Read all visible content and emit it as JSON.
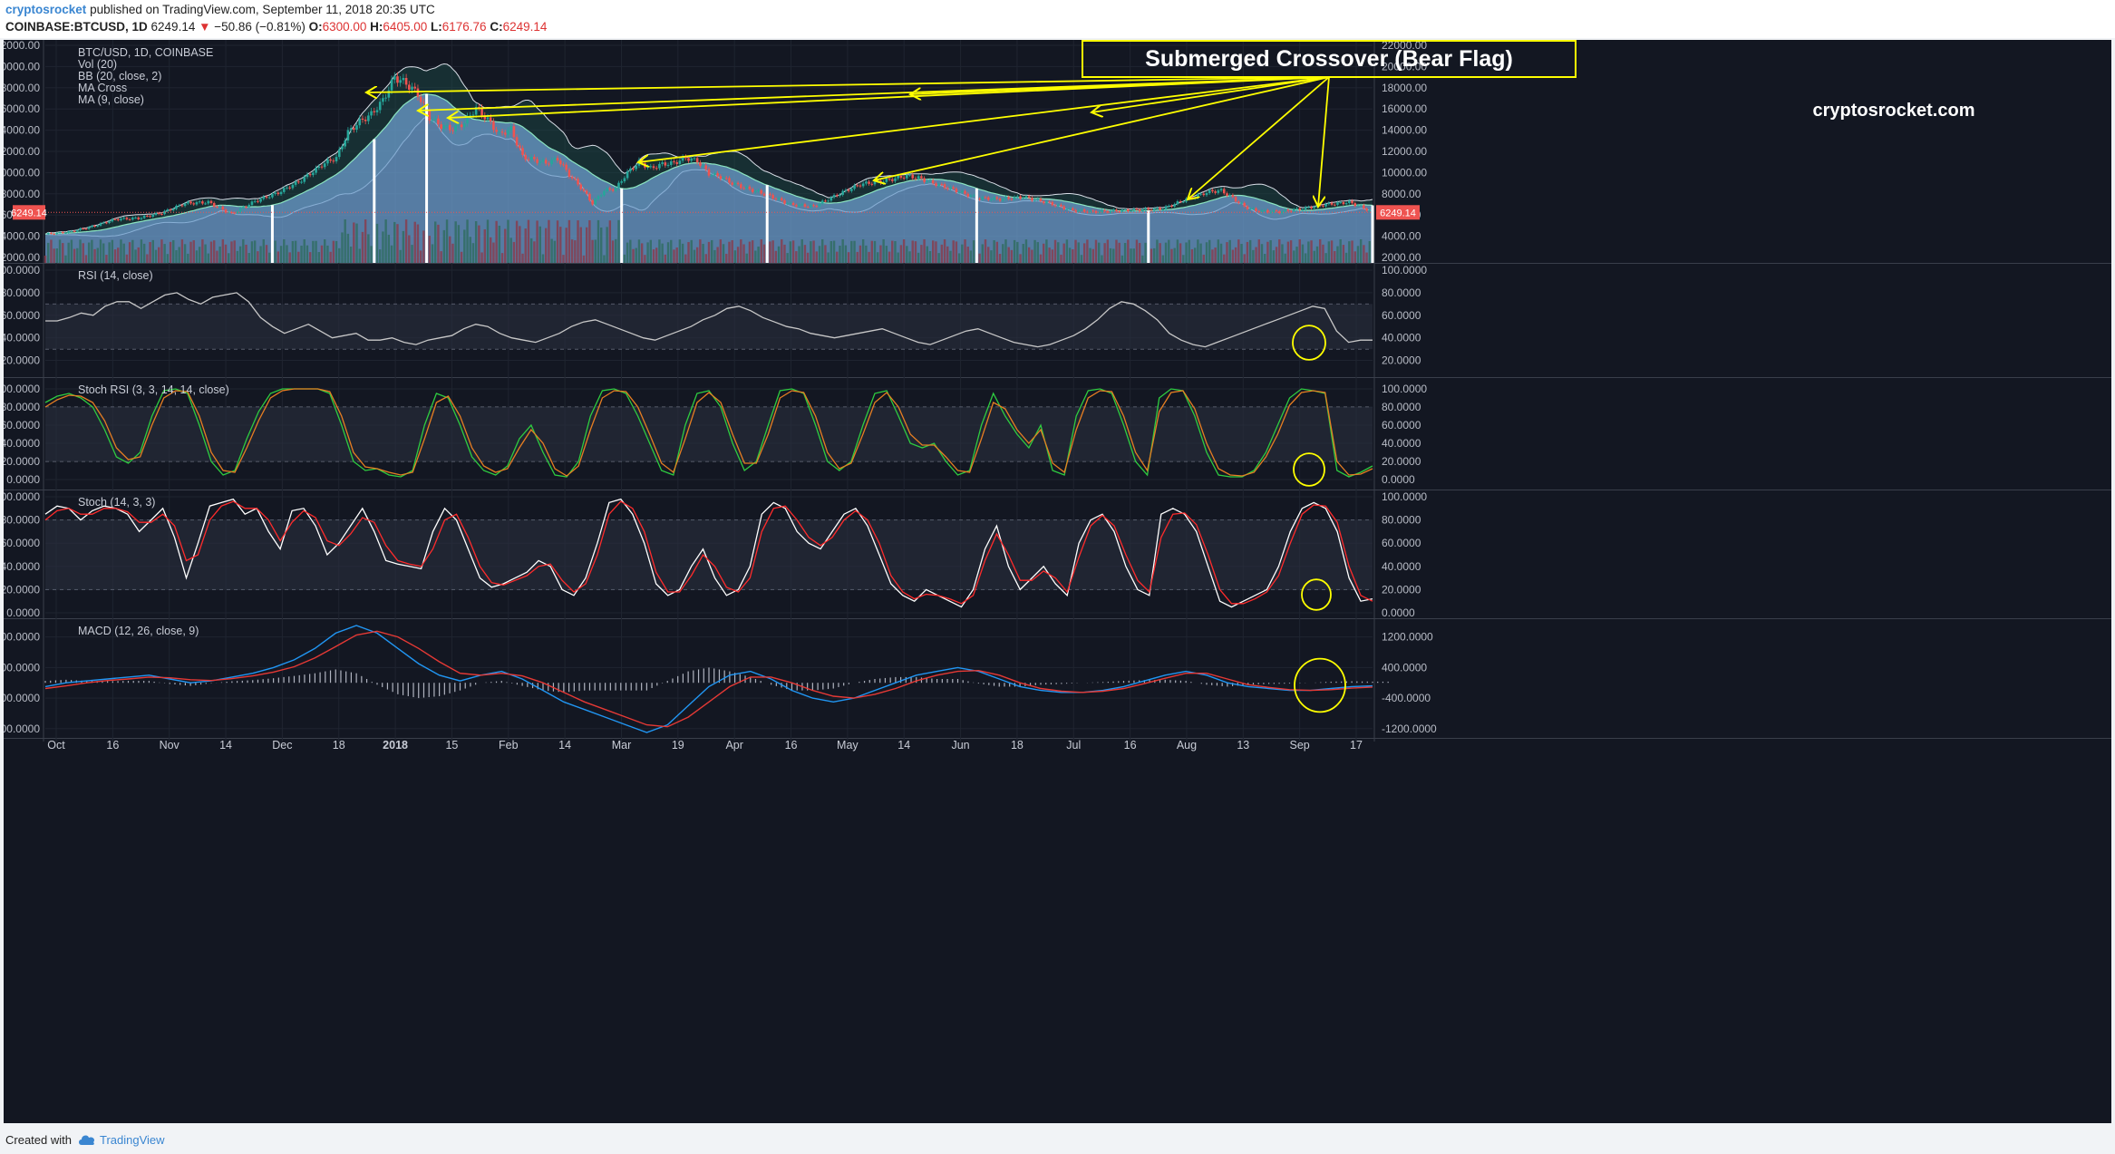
{
  "header": {
    "author": "cryptosrocket",
    "published": "published on TradingView.com, September 11, 2018 20:35 UTC",
    "symbol": "COINBASE:BTCUSD, 1D",
    "last": "6249.14",
    "change": "−50.86 (−0.81%)",
    "o_label": "O:",
    "o": "6300.00",
    "h_label": "H:",
    "h": "6405.00",
    "l_label": "L:",
    "l": "6176.76",
    "c_label": "C:",
    "c": "6249.14"
  },
  "footer": {
    "created_with": "Created with",
    "brand": "TradingView"
  },
  "annotations": {
    "callout": "Submerged Crossover (Bear Flag)",
    "watermark": "cryptosrocket.com"
  },
  "colors": {
    "background": "#131722",
    "up": "#26a69a",
    "down": "#ef5350",
    "bb_fill": "#6e9fcf",
    "annotation": "#ffff00",
    "rsi": "#c8c8c8",
    "stoch_k": "#ffffff",
    "stoch_d": "#ff2b2b",
    "stochrsi_k": "#2ecc40",
    "stochrsi_d": "#e67e22",
    "macd": "#2196f3",
    "signal": "#e53935"
  },
  "chart_data": [
    {
      "type": "candlestick",
      "title": "BTC/USD, 1D, COINBASE",
      "indicators": [
        "Vol (20)",
        "BB (20, close, 2)",
        "MA Cross",
        "MA (9, close)"
      ],
      "last_price_label": "6249.14",
      "ylim": [
        2000,
        22000
      ],
      "y_ticks": [
        "22000.00",
        "20000.00",
        "18000.00",
        "16000.00",
        "14000.00",
        "12000.00",
        "10000.00",
        "8000.00",
        "6000.00",
        "4000.00",
        "2000.00"
      ],
      "x_ticks": [
        "Oct",
        "16",
        "Nov",
        "14",
        "Dec",
        "18",
        "2018",
        "15",
        "Feb",
        "14",
        "Mar",
        "19",
        "Apr",
        "16",
        "May",
        "14",
        "Jun",
        "18",
        "Jul",
        "16",
        "Aug",
        "13",
        "Sep",
        "17"
      ],
      "approx_close": [
        [
          0,
          4200
        ],
        [
          8,
          4400
        ],
        [
          16,
          4900
        ],
        [
          24,
          5600
        ],
        [
          32,
          5700
        ],
        [
          40,
          6200
        ],
        [
          48,
          7100
        ],
        [
          56,
          7200
        ],
        [
          64,
          6100
        ],
        [
          72,
          7300
        ],
        [
          80,
          8100
        ],
        [
          88,
          9300
        ],
        [
          96,
          10900
        ],
        [
          100,
          11400
        ],
        [
          104,
          13800
        ],
        [
          108,
          14800
        ],
        [
          112,
          15500
        ],
        [
          116,
          16800
        ],
        [
          120,
          19000
        ],
        [
          124,
          18400
        ],
        [
          128,
          17400
        ],
        [
          132,
          15200
        ],
        [
          136,
          14400
        ],
        [
          140,
          14100
        ],
        [
          144,
          14700
        ],
        [
          148,
          16100
        ],
        [
          152,
          15000
        ],
        [
          156,
          13600
        ],
        [
          160,
          14100
        ],
        [
          164,
          11500
        ],
        [
          168,
          11200
        ],
        [
          172,
          10900
        ],
        [
          176,
          11300
        ],
        [
          180,
          9800
        ],
        [
          184,
          8600
        ],
        [
          188,
          7100
        ],
        [
          192,
          8300
        ],
        [
          196,
          8500
        ],
        [
          200,
          10000
        ],
        [
          204,
          11000
        ],
        [
          208,
          10400
        ],
        [
          212,
          10800
        ],
        [
          216,
          10900
        ],
        [
          220,
          11400
        ],
        [
          224,
          11100
        ],
        [
          228,
          9900
        ],
        [
          232,
          9600
        ],
        [
          236,
          9000
        ],
        [
          240,
          8600
        ],
        [
          248,
          7900
        ],
        [
          256,
          7000
        ],
        [
          264,
          6800
        ],
        [
          272,
          7900
        ],
        [
          280,
          8900
        ],
        [
          288,
          9200
        ],
        [
          296,
          9700
        ],
        [
          300,
          9500
        ],
        [
          304,
          9100
        ],
        [
          312,
          8400
        ],
        [
          320,
          7600
        ],
        [
          328,
          7500
        ],
        [
          336,
          7700
        ],
        [
          344,
          7200
        ],
        [
          352,
          6500
        ],
        [
          360,
          6300
        ],
        [
          368,
          6400
        ],
        [
          376,
          6500
        ],
        [
          384,
          6600
        ],
        [
          392,
          7500
        ],
        [
          400,
          8200
        ],
        [
          404,
          8300
        ],
        [
          408,
          7600
        ],
        [
          412,
          6800
        ],
        [
          416,
          6400
        ],
        [
          424,
          6300
        ],
        [
          432,
          6600
        ],
        [
          440,
          7000
        ],
        [
          448,
          7200
        ],
        [
          452,
          6800
        ],
        [
          456,
          6249
        ]
      ]
    },
    {
      "type": "line",
      "title": "RSI (14, close)",
      "ylim": [
        10,
        100
      ],
      "y_ticks": [
        "100.0000",
        "80.0000",
        "60.0000",
        "40.0000",
        "20.0000"
      ],
      "bands": [
        70,
        30
      ],
      "values": [
        55,
        55,
        58,
        62,
        60,
        68,
        72,
        72,
        66,
        72,
        78,
        80,
        74,
        70,
        76,
        78,
        80,
        72,
        58,
        50,
        44,
        48,
        52,
        46,
        40,
        42,
        44,
        38,
        38,
        40,
        36,
        34,
        38,
        40,
        42,
        48,
        52,
        50,
        44,
        40,
        38,
        36,
        40,
        44,
        50,
        54,
        56,
        52,
        48,
        44,
        40,
        38,
        42,
        46,
        50,
        56,
        60,
        66,
        68,
        64,
        58,
        54,
        50,
        48,
        44,
        42,
        40,
        42,
        44,
        46,
        48,
        44,
        40,
        36,
        34,
        38,
        42,
        46,
        48,
        44,
        40,
        36,
        34,
        32,
        34,
        38,
        42,
        48,
        56,
        66,
        72,
        70,
        64,
        56,
        44,
        38,
        34,
        32,
        36,
        40,
        44,
        48,
        52,
        56,
        60,
        64,
        68,
        66,
        46,
        36,
        38,
        38
      ]
    },
    {
      "type": "line",
      "title": "Stoch RSI (3, 3, 14, 14, close)",
      "ylim": [
        -5,
        105
      ],
      "y_ticks": [
        "100.0000",
        "80.0000",
        "60.0000",
        "40.0000",
        "20.0000",
        "0.0000"
      ],
      "bands": [
        80,
        20
      ],
      "series": [
        {
          "name": "K",
          "values": [
            85,
            92,
            95,
            90,
            80,
            55,
            25,
            18,
            30,
            70,
            98,
            100,
            95,
            60,
            20,
            5,
            10,
            45,
            75,
            95,
            100,
            100,
            100,
            100,
            95,
            60,
            20,
            10,
            12,
            5,
            3,
            10,
            60,
            95,
            90,
            60,
            25,
            10,
            5,
            15,
            45,
            60,
            30,
            5,
            3,
            20,
            70,
            98,
            100,
            95,
            70,
            40,
            10,
            5,
            60,
            95,
            98,
            80,
            40,
            10,
            20,
            60,
            98,
            100,
            95,
            60,
            20,
            10,
            20,
            60,
            95,
            98,
            70,
            40,
            35,
            40,
            20,
            5,
            10,
            60,
            95,
            70,
            50,
            35,
            60,
            10,
            5,
            70,
            98,
            100,
            95,
            60,
            20,
            5,
            90,
            100,
            98,
            70,
            30,
            5,
            3,
            3,
            10,
            30,
            60,
            90,
            100,
            98,
            95,
            10,
            3,
            8,
            15
          ]
        },
        {
          "name": "D",
          "values": [
            80,
            88,
            93,
            92,
            85,
            65,
            35,
            22,
            25,
            60,
            90,
            98,
            97,
            70,
            30,
            10,
            8,
            35,
            65,
            90,
            98,
            100,
            100,
            100,
            97,
            70,
            30,
            14,
            12,
            8,
            5,
            8,
            45,
            85,
            92,
            70,
            35,
            15,
            8,
            12,
            35,
            55,
            40,
            12,
            4,
            15,
            55,
            90,
            98,
            97,
            80,
            50,
            18,
            8,
            45,
            85,
            96,
            85,
            50,
            18,
            18,
            50,
            90,
            98,
            96,
            70,
            30,
            12,
            18,
            50,
            85,
            96,
            80,
            50,
            38,
            38,
            25,
            10,
            8,
            45,
            85,
            78,
            55,
            40,
            55,
            18,
            8,
            55,
            90,
            98,
            97,
            70,
            30,
            10,
            75,
            96,
            98,
            78,
            40,
            12,
            5,
            4,
            8,
            25,
            50,
            82,
            96,
            98,
            96,
            20,
            5,
            6,
            12
          ]
        }
      ]
    },
    {
      "type": "line",
      "title": "Stoch (14, 3, 3)",
      "ylim": [
        0,
        100
      ],
      "y_ticks": [
        "100.0000",
        "80.0000",
        "60.0000",
        "40.0000",
        "20.0000",
        "0.0000"
      ],
      "bands": [
        80,
        20
      ],
      "series": [
        {
          "name": "K",
          "values": [
            85,
            92,
            90,
            80,
            88,
            92,
            90,
            85,
            70,
            80,
            90,
            65,
            30,
            60,
            92,
            95,
            98,
            85,
            90,
            70,
            55,
            88,
            90,
            75,
            50,
            60,
            75,
            90,
            70,
            45,
            42,
            40,
            38,
            70,
            90,
            80,
            55,
            30,
            22,
            25,
            30,
            35,
            45,
            40,
            20,
            15,
            30,
            60,
            95,
            98,
            85,
            60,
            25,
            15,
            20,
            40,
            55,
            30,
            15,
            20,
            40,
            85,
            95,
            90,
            70,
            60,
            55,
            70,
            85,
            90,
            75,
            50,
            25,
            15,
            10,
            20,
            15,
            10,
            5,
            20,
            55,
            75,
            40,
            20,
            30,
            40,
            25,
            15,
            60,
            80,
            85,
            70,
            40,
            20,
            15,
            85,
            90,
            85,
            70,
            40,
            10,
            5,
            10,
            15,
            20,
            40,
            70,
            90,
            95,
            90,
            70,
            30,
            10,
            12
          ]
        },
        {
          "name": "D",
          "values": [
            80,
            88,
            90,
            85,
            85,
            90,
            90,
            87,
            78,
            78,
            85,
            75,
            45,
            50,
            80,
            92,
            96,
            90,
            90,
            80,
            62,
            78,
            88,
            82,
            62,
            58,
            68,
            82,
            78,
            58,
            45,
            42,
            40,
            55,
            80,
            85,
            65,
            40,
            26,
            24,
            28,
            32,
            40,
            42,
            28,
            18,
            25,
            50,
            85,
            96,
            90,
            70,
            35,
            18,
            18,
            32,
            50,
            40,
            22,
            18,
            30,
            70,
            90,
            92,
            80,
            65,
            58,
            65,
            80,
            88,
            80,
            60,
            32,
            18,
            12,
            16,
            15,
            12,
            8,
            15,
            45,
            68,
            50,
            28,
            28,
            36,
            30,
            18,
            48,
            75,
            84,
            75,
            50,
            28,
            18,
            65,
            85,
            86,
            76,
            50,
            20,
            8,
            8,
            12,
            18,
            32,
            60,
            85,
            93,
            92,
            78,
            40,
            15,
            10
          ]
        }
      ]
    },
    {
      "type": "line",
      "title": "MACD (12, 26, close, 9)",
      "ylim": [
        -1300,
        1500
      ],
      "y_ticks": [
        "1200.0000",
        "400.0000",
        "-400.0000",
        "-1200.0000"
      ],
      "series": [
        {
          "name": "MACD",
          "values": [
            -100,
            0,
            50,
            100,
            150,
            200,
            100,
            0,
            50,
            150,
            250,
            400,
            600,
            900,
            1300,
            1500,
            1300,
            900,
            500,
            200,
            50,
            200,
            300,
            100,
            -200,
            -500,
            -700,
            -900,
            -1100,
            -1300,
            -1100,
            -600,
            -100,
            200,
            300,
            100,
            -200,
            -400,
            -500,
            -400,
            -200,
            0,
            200,
            300,
            400,
            300,
            100,
            -100,
            -200,
            -250,
            -250,
            -200,
            -100,
            50,
            200,
            300,
            200,
            0,
            -100,
            -150,
            -200,
            -200,
            -150,
            -100,
            -80
          ]
        },
        {
          "name": "Signal",
          "values": [
            -150,
            -80,
            0,
            60,
            100,
            150,
            130,
            80,
            60,
            110,
            180,
            280,
            420,
            650,
            950,
            1250,
            1350,
            1200,
            900,
            550,
            250,
            200,
            250,
            180,
            0,
            -250,
            -500,
            -700,
            -900,
            -1100,
            -1150,
            -900,
            -500,
            -100,
            150,
            150,
            0,
            -200,
            -350,
            -400,
            -300,
            -150,
            50,
            200,
            300,
            320,
            200,
            0,
            -150,
            -220,
            -250,
            -220,
            -150,
            -20,
            120,
            250,
            250,
            100,
            -50,
            -120,
            -180,
            -200,
            -180,
            -140,
            -110
          ]
        }
      ]
    }
  ]
}
